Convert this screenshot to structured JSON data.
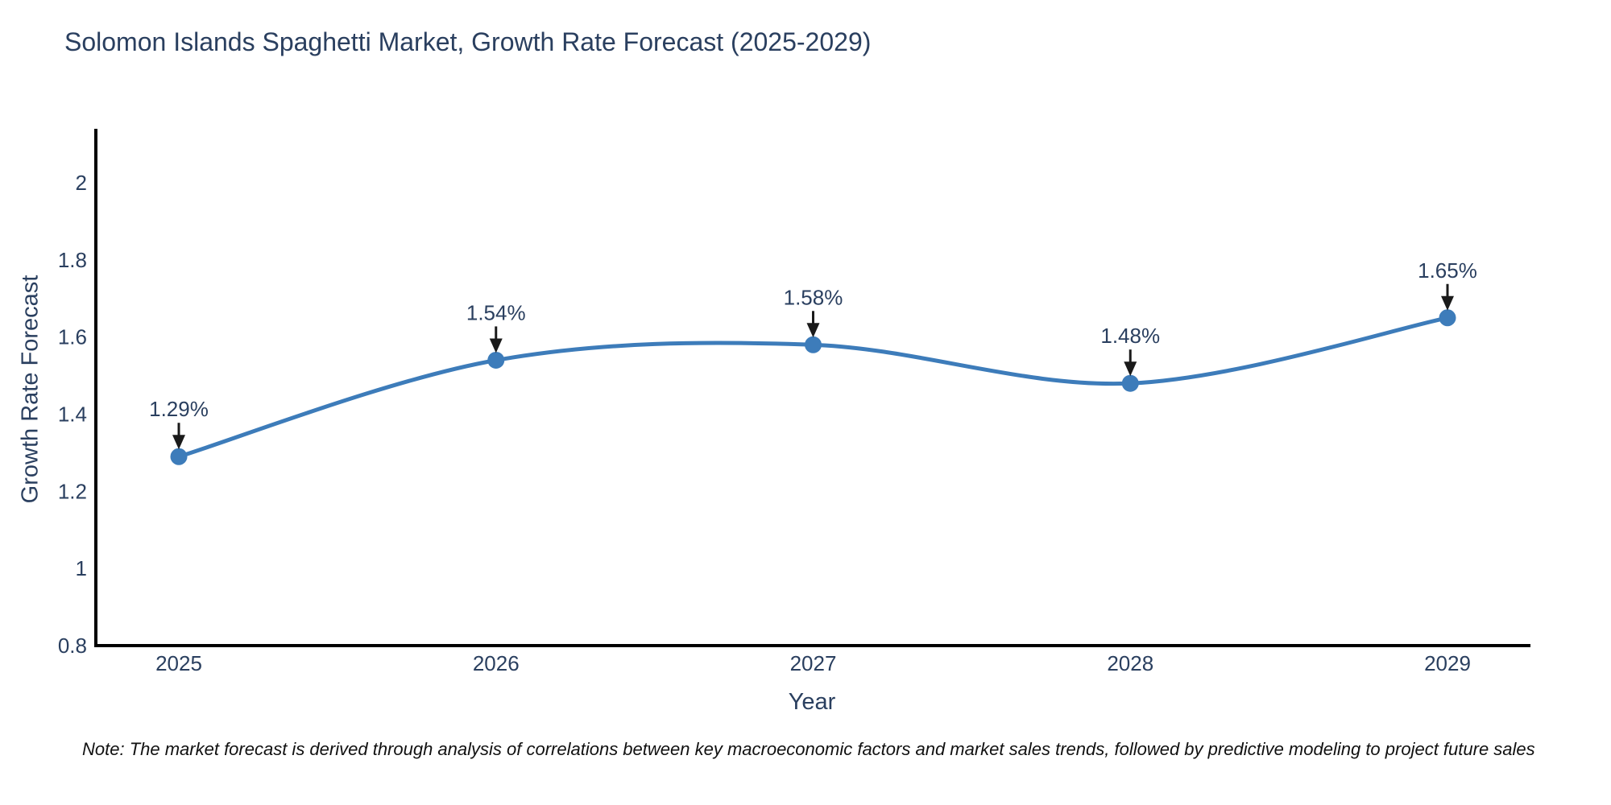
{
  "title": "Solomon Islands Spaghetti Market, Growth Rate Forecast (2025-2029)",
  "note": {
    "text": "Note: The market forecast is derived through analysis of correlations between key macroeconomic factors and market sales trends, followed by predictive modeling to project future sales"
  },
  "colors": {
    "line": "#3d7cba",
    "marker": "#3d7cba",
    "text": "#2a3f5f",
    "axis_line": "#000000",
    "arrow": "#1a1a1a",
    "note_text": "#111111"
  },
  "chart_data": {
    "type": "line",
    "title": "Solomon Islands Spaghetti Market, Growth Rate Forecast (2025-2029)",
    "xlabel": "Year",
    "ylabel": "Growth Rate Forecast",
    "x": [
      2025,
      2026,
      2027,
      2028,
      2029
    ],
    "y": [
      1.29,
      1.54,
      1.58,
      1.48,
      1.65
    ],
    "point_labels": [
      "1.29%",
      "1.54%",
      "1.58%",
      "1.48%",
      "1.65%"
    ],
    "line_shape": "spline",
    "markers": true,
    "annotations_arrow": true,
    "ylim": [
      0.8,
      2.14
    ],
    "yticks": [
      0.8,
      1.0,
      1.2,
      1.4,
      1.6,
      1.8,
      2.0
    ],
    "xticks": [
      "2025",
      "2026",
      "2027",
      "2028",
      "2029"
    ],
    "grid": false,
    "legend": false
  }
}
